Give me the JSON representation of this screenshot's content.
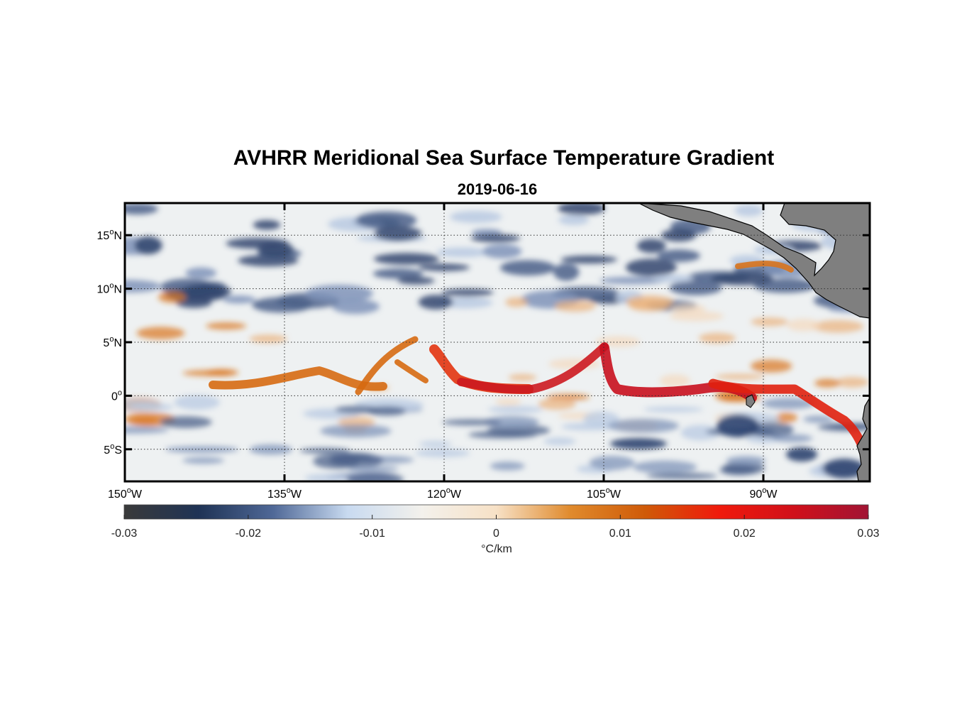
{
  "title": "AVHRR Meridional Sea Surface Temperature Gradient",
  "subtitle": "2019-06-16",
  "map": {
    "lon_range": [
      -150,
      -80
    ],
    "lat_range": [
      -8,
      18
    ],
    "lon_ticks": [
      {
        "value": -150,
        "num": "150",
        "sup": "o",
        "hem": "W"
      },
      {
        "value": -135,
        "num": "135",
        "sup": "o",
        "hem": "W"
      },
      {
        "value": -120,
        "num": "120",
        "sup": "o",
        "hem": "W"
      },
      {
        "value": -105,
        "num": "105",
        "sup": "o",
        "hem": "W"
      },
      {
        "value": -90,
        "num": "90",
        "sup": "o",
        "hem": "W"
      }
    ],
    "lat_ticks": [
      {
        "value": 15,
        "num": "15",
        "sup": "o",
        "hem": "N"
      },
      {
        "value": 10,
        "num": "10",
        "sup": "o",
        "hem": "N"
      },
      {
        "value": 5,
        "num": "5",
        "sup": "o",
        "hem": "N"
      },
      {
        "value": 0,
        "num": "0",
        "sup": "o",
        "hem": ""
      },
      {
        "value": -5,
        "num": "5",
        "sup": "o",
        "hem": "S"
      }
    ],
    "grid": "dotted",
    "land_color": "#808080"
  },
  "colorbar": {
    "min": -0.03,
    "max": 0.03,
    "ticks": [
      "-0.03",
      "-0.02",
      "-0.01",
      "0",
      "0.01",
      "0.02",
      "0.03"
    ],
    "label": "°C/km",
    "colors": [
      "#3a3a3a",
      "#1f3355",
      "#4f6897",
      "#c8daf0",
      "#f3f1ec",
      "#f7e1c6",
      "#e08a2c",
      "#cf5a08",
      "#f01a0c",
      "#d0101a",
      "#a11434"
    ]
  }
}
